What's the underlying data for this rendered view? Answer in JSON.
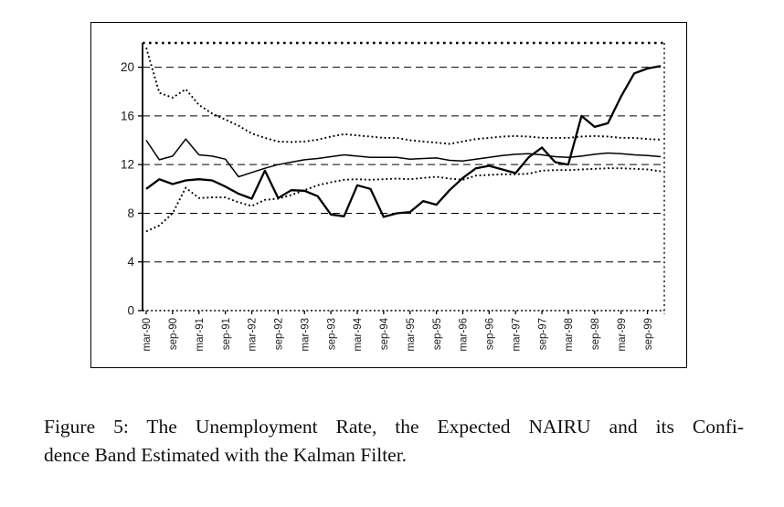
{
  "figure": {
    "caption_lines": [
      "Figure 5:  The Unemployment Rate, the Expected NAIRU and its Confi-",
      "dence Band Estimated with the Kalman Filter."
    ]
  },
  "chart_data": {
    "type": "line",
    "title": "",
    "xlabel": "",
    "ylabel": "",
    "ylim": [
      0,
      22
    ],
    "yticks": [
      0,
      4,
      8,
      12,
      16,
      20
    ],
    "ytick_labels": [
      "0",
      "4",
      "8",
      "12",
      "16",
      "20"
    ],
    "grid": "horizontal-dashed",
    "legend_position": "none",
    "line_color": "#000000",
    "background_color": "#ffffff",
    "categories": [
      "mar-90",
      "jun-90",
      "sep-90",
      "dec-90",
      "mar-91",
      "jun-91",
      "sep-91",
      "dec-91",
      "mar-92",
      "jun-92",
      "sep-92",
      "dec-92",
      "mar-93",
      "jun-93",
      "sep-93",
      "dec-93",
      "mar-94",
      "jun-94",
      "sep-94",
      "dec-94",
      "mar-95",
      "jun-95",
      "sep-95",
      "dec-95",
      "mar-96",
      "jun-96",
      "sep-96",
      "dec-96",
      "mar-97",
      "jun-97",
      "sep-97",
      "dec-97",
      "mar-98",
      "jun-98",
      "sep-98",
      "dec-98",
      "mar-99",
      "jun-99",
      "sep-99",
      "dec-99"
    ],
    "x_tick_labels": [
      "mar-90",
      "sep-90",
      "mar-91",
      "sep-91",
      "mar-92",
      "sep-92",
      "mar-93",
      "sep-93",
      "mar-94",
      "sep-94",
      "mar-95",
      "sep-95",
      "mar-96",
      "sep-96",
      "mar-97",
      "sep-97",
      "mar-98",
      "sep-98",
      "mar-99",
      "sep-99"
    ],
    "x_tick_every": 2,
    "series": [
      {
        "name": "Unemployment Rate",
        "style": "solid-thick",
        "values": [
          10.0,
          10.8,
          10.4,
          10.7,
          10.8,
          10.7,
          10.2,
          9.6,
          9.2,
          11.5,
          9.25,
          9.9,
          9.85,
          9.4,
          7.9,
          7.75,
          10.3,
          10.0,
          7.7,
          8.0,
          8.1,
          9.0,
          8.7,
          9.9,
          10.9,
          11.7,
          11.9,
          11.6,
          11.3,
          12.6,
          13.4,
          12.2,
          12.0,
          16.0,
          15.1,
          15.4,
          17.6,
          19.5,
          19.9,
          20.1
        ]
      },
      {
        "name": "Expected NAIRU",
        "style": "solid-thin",
        "values": [
          14.0,
          12.4,
          12.7,
          14.1,
          12.8,
          12.7,
          12.45,
          11.0,
          11.35,
          11.7,
          12.0,
          12.2,
          12.4,
          12.5,
          12.65,
          12.8,
          12.7,
          12.6,
          12.6,
          12.6,
          12.45,
          12.5,
          12.55,
          12.35,
          12.3,
          12.45,
          12.6,
          12.75,
          12.85,
          12.9,
          12.8,
          12.65,
          12.6,
          12.7,
          12.85,
          12.95,
          12.9,
          12.8,
          12.75,
          12.65
        ]
      },
      {
        "name": "Confidence Band Upper",
        "style": "dotted",
        "values": [
          21.6,
          17.9,
          17.5,
          18.2,
          16.9,
          16.2,
          15.7,
          15.2,
          14.55,
          14.2,
          13.9,
          13.85,
          13.9,
          14.05,
          14.3,
          14.5,
          14.4,
          14.3,
          14.2,
          14.2,
          14.0,
          13.9,
          13.8,
          13.7,
          13.9,
          14.1,
          14.2,
          14.3,
          14.35,
          14.3,
          14.2,
          14.2,
          14.2,
          14.3,
          14.35,
          14.3,
          14.2,
          14.2,
          14.1,
          14.05
        ]
      },
      {
        "name": "Confidence Band Lower",
        "style": "dotted",
        "values": [
          6.5,
          7.0,
          8.0,
          10.1,
          9.25,
          9.3,
          9.3,
          8.9,
          8.6,
          9.1,
          9.2,
          9.5,
          9.9,
          10.3,
          10.55,
          10.75,
          10.8,
          10.75,
          10.8,
          10.85,
          10.8,
          10.9,
          11.0,
          10.85,
          10.75,
          11.1,
          11.15,
          11.2,
          11.2,
          11.25,
          11.5,
          11.55,
          11.55,
          11.6,
          11.65,
          11.7,
          11.7,
          11.65,
          11.6,
          11.45
        ]
      }
    ]
  }
}
